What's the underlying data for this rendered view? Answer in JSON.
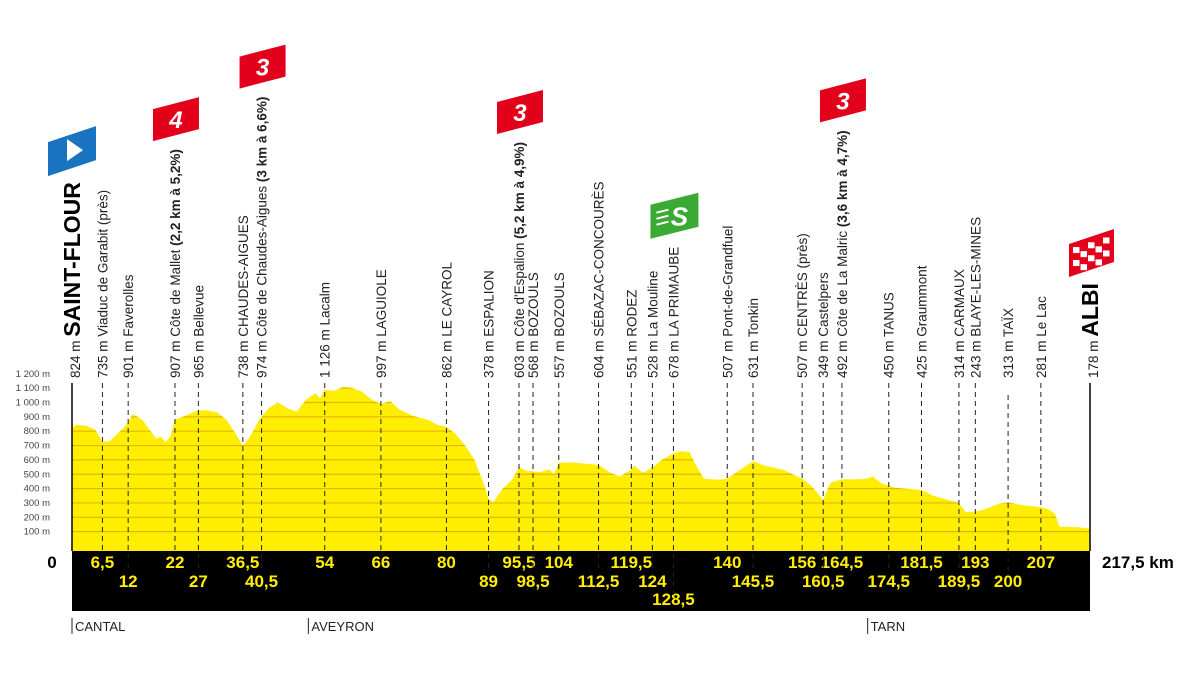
{
  "chart_data": {
    "type": "area",
    "title": "",
    "xlabel": "",
    "ylabel": "",
    "xlim": [
      0,
      217.5
    ],
    "ylim": [
      0,
      1200
    ],
    "y_ticks": [
      "100 m",
      "200 m",
      "300 m",
      "400 m",
      "500 m",
      "600 m",
      "700 m",
      "800 m",
      "900 m",
      "1 000 m",
      "1 100 m",
      "1 200 m"
    ],
    "y_tick_values": [
      100,
      200,
      300,
      400,
      500,
      600,
      700,
      800,
      900,
      1000,
      1100,
      1200
    ],
    "start_km_label": "0",
    "total_distance_label": "217,5 km",
    "grid": true,
    "colors": {
      "profile": "#ffee00",
      "gridline": "#e0b800",
      "km_bar": "#000000",
      "km_text": "#ffee00",
      "climb": "#e3001b",
      "sprint": "#3aaa35",
      "start": "#1a73c0",
      "finish": "#e3001b"
    },
    "profile": [
      [
        0,
        824
      ],
      [
        1,
        845
      ],
      [
        3,
        838
      ],
      [
        5,
        810
      ],
      [
        6.5,
        725
      ],
      [
        8,
        730
      ],
      [
        10,
        790
      ],
      [
        12,
        860
      ],
      [
        13,
        920
      ],
      [
        15,
        880
      ],
      [
        17,
        790
      ],
      [
        18,
        750
      ],
      [
        19,
        760
      ],
      [
        20,
        725
      ],
      [
        21,
        760
      ],
      [
        22,
        880
      ],
      [
        24,
        905
      ],
      [
        27,
        945
      ],
      [
        29,
        945
      ],
      [
        31,
        930
      ],
      [
        33,
        880
      ],
      [
        35,
        780
      ],
      [
        36.5,
        700
      ],
      [
        38,
        760
      ],
      [
        40,
        880
      ],
      [
        42,
        960
      ],
      [
        44,
        1000
      ],
      [
        46,
        960
      ],
      [
        48,
        935
      ],
      [
        50,
        1020
      ],
      [
        52,
        1065
      ],
      [
        53,
        1030
      ],
      [
        54,
        1090
      ],
      [
        56,
        1080
      ],
      [
        58,
        1110
      ],
      [
        60,
        1100
      ],
      [
        62,
        1075
      ],
      [
        64,
        1020
      ],
      [
        66,
        990
      ],
      [
        68,
        1010
      ],
      [
        70,
        950
      ],
      [
        73,
        905
      ],
      [
        76,
        880
      ],
      [
        78,
        845
      ],
      [
        80,
        830
      ],
      [
        82,
        780
      ],
      [
        84,
        700
      ],
      [
        86,
        600
      ],
      [
        88,
        430
      ],
      [
        89,
        330
      ],
      [
        90,
        305
      ],
      [
        92,
        400
      ],
      [
        94,
        460
      ],
      [
        95.5,
        550
      ],
      [
        97,
        525
      ],
      [
        100,
        515
      ],
      [
        102,
        535
      ],
      [
        103,
        500
      ],
      [
        104,
        580
      ],
      [
        107,
        582
      ],
      [
        110,
        572
      ],
      [
        112.5,
        565
      ],
      [
        115,
        510
      ],
      [
        117,
        485
      ],
      [
        119.5,
        530
      ],
      [
        120,
        560
      ],
      [
        122,
        510
      ],
      [
        124,
        545
      ],
      [
        126,
        600
      ],
      [
        128.5,
        645
      ],
      [
        130,
        660
      ],
      [
        132,
        655
      ],
      [
        133,
        580
      ],
      [
        135,
        470
      ],
      [
        138,
        462
      ],
      [
        140,
        470
      ],
      [
        142,
        515
      ],
      [
        145.5,
        590
      ],
      [
        148,
        560
      ],
      [
        152,
        530
      ],
      [
        156,
        470
      ],
      [
        158,
        420
      ],
      [
        160.5,
        320
      ],
      [
        162,
        440
      ],
      [
        164.5,
        465
      ],
      [
        168,
        465
      ],
      [
        170,
        470
      ],
      [
        171,
        485
      ],
      [
        173,
        435
      ],
      [
        176,
        405
      ],
      [
        181.5,
        390
      ],
      [
        184,
        350
      ],
      [
        189.5,
        300
      ],
      [
        191,
        235
      ],
      [
        193,
        240
      ],
      [
        195,
        255
      ],
      [
        198,
        295
      ],
      [
        200,
        305
      ],
      [
        203,
        285
      ],
      [
        207,
        270
      ],
      [
        208.5,
        258
      ],
      [
        210,
        225
      ],
      [
        211,
        135
      ],
      [
        215,
        130
      ],
      [
        217.5,
        120
      ]
    ],
    "waypoints": [
      {
        "km": 0,
        "km_label": "0",
        "elevation": "824 m",
        "name": "SAINT-FLOUR",
        "type": "start"
      },
      {
        "km": 6.5,
        "km_label": "6,5",
        "elevation": "735 m",
        "name": "Viaduc de Garabit (près)"
      },
      {
        "km": 12,
        "km_label": "12",
        "elevation": "901 m",
        "name": "Faverolles"
      },
      {
        "km": 22,
        "km_label": "22",
        "elevation": "907 m",
        "name": "Côte de Mallet",
        "climb_detail": "(2,2 km à 5,2%)",
        "climb_category": "4"
      },
      {
        "km": 27,
        "km_label": "27",
        "elevation": "965 m",
        "name": "Bellevue"
      },
      {
        "km": 36.5,
        "km_label": "36,5",
        "elevation": "738 m",
        "name": "CHAUDES-AIGUES"
      },
      {
        "km": 40.5,
        "km_label": "40,5",
        "elevation": "974 m",
        "name": "Côte de Chaudes-Aigues",
        "climb_detail": "(3 km à 6,6%)",
        "climb_category": "3"
      },
      {
        "km": 54,
        "km_label": "54",
        "elevation": "1 126 m",
        "name": "Lacalm"
      },
      {
        "km": 66,
        "km_label": "66",
        "elevation": "997 m",
        "name": "LAGUIOLE"
      },
      {
        "km": 80,
        "km_label": "80",
        "elevation": "862 m",
        "name": "LE CAYROL"
      },
      {
        "km": 89,
        "km_label": "89",
        "elevation": "378 m",
        "name": "ESPALION"
      },
      {
        "km": 95.5,
        "km_label": "95,5",
        "elevation": "603 m",
        "name": "Côte d'Espalion",
        "climb_detail": "(5,2 km à 4,9%)",
        "climb_category": "3"
      },
      {
        "km": 98.5,
        "km_label": "98,5",
        "elevation": "568 m",
        "name": "BOZOULS"
      },
      {
        "km": 104,
        "km_label": "104",
        "elevation": "557 m",
        "name": "BOZOULS"
      },
      {
        "km": 112.5,
        "km_label": "112,5",
        "elevation": "604 m",
        "name": "SÉBAZAC-CONCOURÈS"
      },
      {
        "km": 119.5,
        "km_label": "119,5",
        "elevation": "551 m",
        "name": "RODEZ"
      },
      {
        "km": 124,
        "km_label": "124",
        "elevation": "528 m",
        "name": "La Mouline"
      },
      {
        "km": 128.5,
        "km_label": "128,5",
        "elevation": "678 m",
        "name": "LA PRIMAUBE",
        "type": "sprint",
        "sprint_label": "S"
      },
      {
        "km": 140,
        "km_label": "140",
        "elevation": "507 m",
        "name": "Pont-de-Grandfuel"
      },
      {
        "km": 145.5,
        "km_label": "145,5",
        "elevation": "631 m",
        "name": "Tonkin"
      },
      {
        "km": 156,
        "km_label": "156",
        "elevation": "507 m",
        "name": "CENTRÈS (près)"
      },
      {
        "km": 160.5,
        "km_label": "160,5",
        "elevation": "349 m",
        "name": "Castelpers"
      },
      {
        "km": 164.5,
        "km_label": "164,5",
        "elevation": "492 m",
        "name": "Côte de La Malric",
        "climb_detail": "(3,6 km à 4,7%)",
        "climb_category": "3"
      },
      {
        "km": 174.5,
        "km_label": "174,5",
        "elevation": "450 m",
        "name": "TANUS"
      },
      {
        "km": 181.5,
        "km_label": "181,5",
        "elevation": "425 m",
        "name": "Graummont"
      },
      {
        "km": 189.5,
        "km_label": "189,5",
        "elevation": "314 m",
        "name": "CARMAUX"
      },
      {
        "km": 193,
        "km_label": "193",
        "elevation": "243 m",
        "name": "BLAYE-LES-MINES"
      },
      {
        "km": 200,
        "km_label": "200",
        "elevation": "313 m",
        "name": "TAÏX"
      },
      {
        "km": 207,
        "km_label": "207",
        "elevation": "281 m",
        "name": "Le Lac"
      },
      {
        "km": 217.5,
        "km_label": "217,5 km",
        "elevation": "178 m",
        "name": "ALBI",
        "type": "finish"
      }
    ],
    "regions": [
      {
        "km": 0,
        "label": "CANTAL"
      },
      {
        "km": 50.5,
        "label": "AVEYRON"
      },
      {
        "km": 170,
        "label": "TARN"
      }
    ]
  }
}
